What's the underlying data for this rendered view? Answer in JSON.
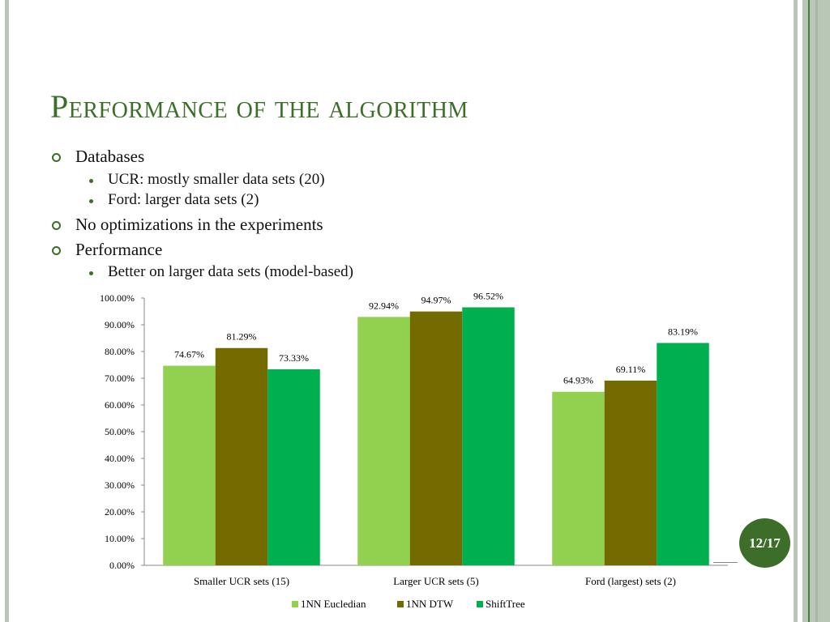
{
  "title": "Performance of the algorithm",
  "bullets": [
    {
      "text": "Databases",
      "sub": [
        "UCR: mostly smaller data sets (20)",
        "Ford: larger data sets (2)"
      ]
    },
    {
      "text": "No optimizations in the experiments",
      "sub": []
    },
    {
      "text": "Performance",
      "sub": [
        "Better on larger data sets (model-based)"
      ]
    }
  ],
  "page_number": "12/17",
  "chart_data": {
    "type": "bar",
    "categories": [
      "Smaller UCR sets (15)",
      "Larger UCR sets (5)",
      "Ford (largest) sets (2)"
    ],
    "series": [
      {
        "name": "1NN Eucledian",
        "color": "#92d050",
        "values": [
          74.67,
          92.94,
          64.93
        ],
        "labels": [
          "74.67%",
          "92.94%",
          "64.93%"
        ]
      },
      {
        "name": "1NN DTW",
        "color": "#746b00",
        "values": [
          81.29,
          94.97,
          69.11
        ],
        "labels": [
          "81.29%",
          "94.97%",
          "69.11%"
        ]
      },
      {
        "name": "ShiftTree",
        "color": "#00b050",
        "values": [
          73.33,
          96.52,
          83.19
        ],
        "labels": [
          "73.33%",
          "96.52%",
          "83.19%"
        ]
      }
    ],
    "yticks": [
      "0.00%",
      "10.00%",
      "20.00%",
      "30.00%",
      "40.00%",
      "50.00%",
      "60.00%",
      "70.00%",
      "80.00%",
      "90.00%",
      "100.00%"
    ],
    "ylim": [
      0,
      100
    ],
    "legend": "bottom",
    "grid": false
  }
}
